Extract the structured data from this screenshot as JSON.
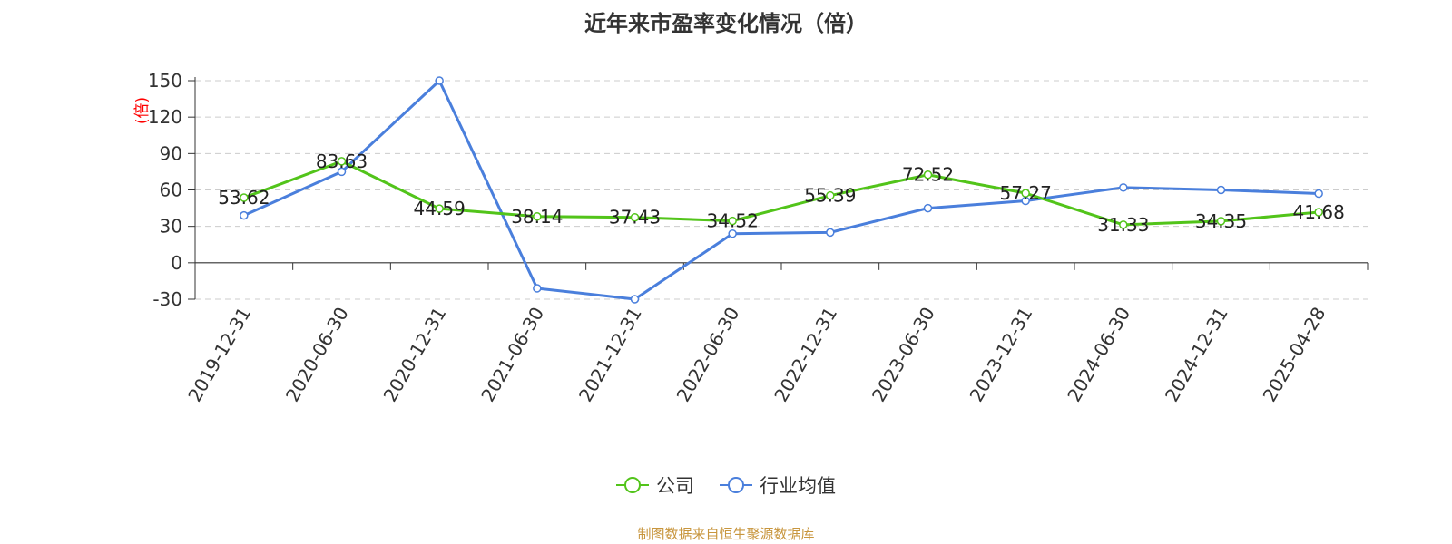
{
  "chart_data": {
    "type": "line",
    "title": "近年来市盈率变化情况（倍）",
    "ylabel": "(倍)",
    "categories": [
      "2019-12-31",
      "2020-06-30",
      "2020-12-31",
      "2021-06-30",
      "2021-12-31",
      "2022-06-30",
      "2022-12-31",
      "2023-06-30",
      "2023-12-31",
      "2024-06-30",
      "2024-12-31",
      "2025-04-28"
    ],
    "ylim": [
      -30,
      150
    ],
    "yticks": [
      -30,
      0,
      30,
      60,
      90,
      120,
      150
    ],
    "grid": true,
    "legend_position": "bottom",
    "series": [
      {
        "name": "公司",
        "color": "#52c41a",
        "show_labels": true,
        "values": [
          53.62,
          83.63,
          44.59,
          38.14,
          37.43,
          34.52,
          55.39,
          72.52,
          57.27,
          31.33,
          34.35,
          41.68
        ]
      },
      {
        "name": "行业均值",
        "color": "#4a7fdc",
        "show_labels": false,
        "values": [
          39,
          75,
          150,
          -21,
          -30,
          24,
          25,
          45,
          51,
          62,
          60,
          57
        ]
      }
    ]
  },
  "source_note": "制图数据来自恒生聚源数据库"
}
